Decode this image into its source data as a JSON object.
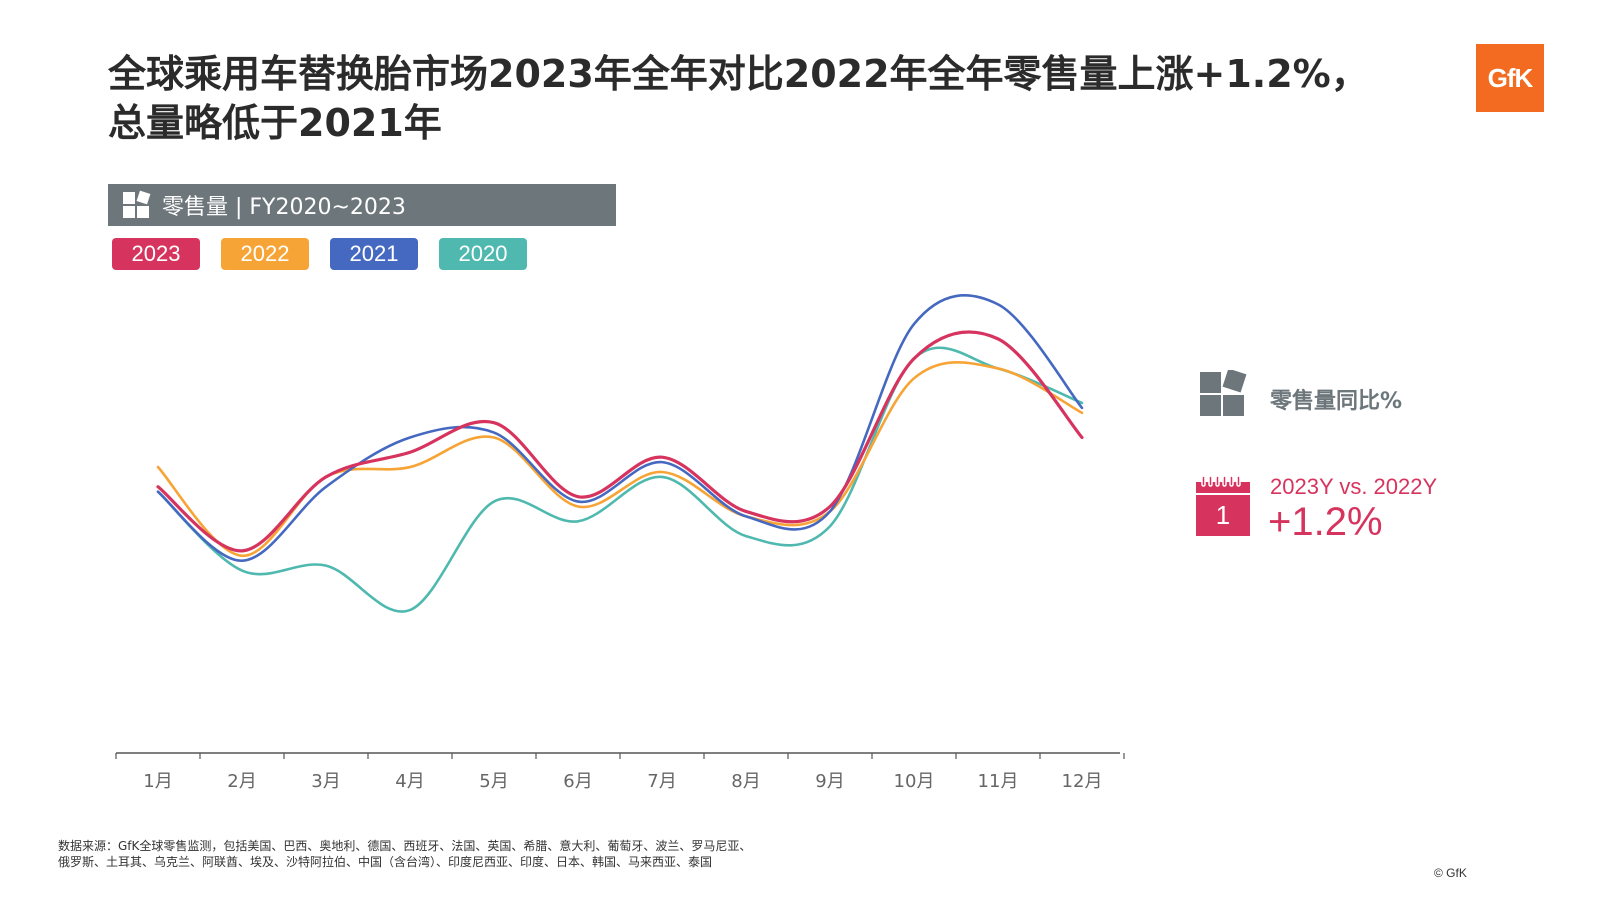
{
  "title": {
    "line1": "全球乘用车替换胎市场2023年全年对比2022年全年零售量上涨+1.2%，",
    "line2": "总量略低于2021年"
  },
  "logo": {
    "text": "GfK",
    "color": "#f26b21"
  },
  "subheader": {
    "text": "零售量 | FY2020~2023",
    "icon": "gfk-blocks-icon"
  },
  "legend": [
    {
      "label": "2023",
      "color": "#d6345e"
    },
    {
      "label": "2022",
      "color": "#f7a436"
    },
    {
      "label": "2021",
      "color": "#4568c0"
    },
    {
      "label": "2020",
      "color": "#4fb9af"
    }
  ],
  "side": {
    "yoy_label": "零售量同比%",
    "calendar_day": "1",
    "comparison_label": "2023Y vs. 2022Y",
    "comparison_value": "+1.2%"
  },
  "chart_data": {
    "type": "line",
    "title": "",
    "xlabel": "",
    "ylabel": "",
    "y_axis_visible": false,
    "ylim": [
      0,
      100
    ],
    "categories": [
      "1月",
      "2月",
      "3月",
      "4月",
      "5月",
      "6月",
      "7月",
      "8月",
      "9月",
      "10月",
      "11月",
      "12月"
    ],
    "series": [
      {
        "name": "2023",
        "color": "#d6345e",
        "values": [
          54,
          41,
          56,
          61,
          67,
          52,
          60,
          49,
          50,
          80,
          84,
          64
        ]
      },
      {
        "name": "2022",
        "color": "#f7a436",
        "values": [
          58,
          40,
          56,
          58,
          64,
          50,
          57,
          48,
          49,
          76,
          78,
          69
        ]
      },
      {
        "name": "2021",
        "color": "#4568c0",
        "values": [
          53,
          39,
          54,
          64,
          65,
          51,
          59,
          48,
          49,
          87,
          91,
          70
        ]
      },
      {
        "name": "2020",
        "color": "#4fb9af",
        "values": [
          53,
          37,
          38,
          29,
          51,
          47,
          56,
          44,
          46,
          80,
          78,
          71
        ]
      }
    ]
  },
  "source": {
    "line1": "数据来源：GfK全球零售监测，包括美国、巴西、奥地利、德国、西班牙、法国、英国、希腊、意大利、葡萄牙、波兰、罗马尼亚、",
    "line2": "俄罗斯、土耳其、乌克兰、阿联酋、埃及、沙特阿拉伯、中国（含台湾）、印度尼西亚、印度、日本、韩国、马来西亚、泰国"
  },
  "copyright": "© GfK"
}
